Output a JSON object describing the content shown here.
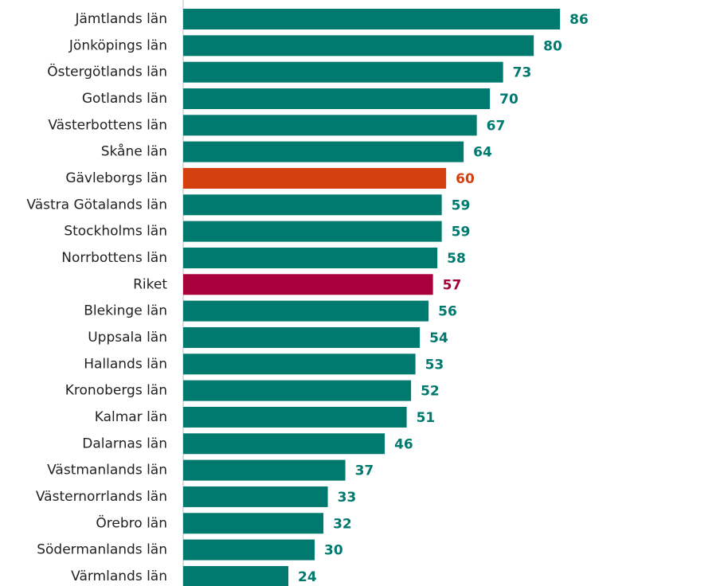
{
  "chart_data": {
    "type": "bar",
    "orientation": "horizontal",
    "categories": [
      "Jämtlands län",
      "Jönköpings län",
      "Östergötlands län",
      "Gotlands län",
      "Västerbottens län",
      "Skåne län",
      "Gävleborgs län",
      "Västra Götalands län",
      "Stockholms län",
      "Norrbottens län",
      "Riket",
      "Blekinge län",
      "Uppsala län",
      "Hallands län",
      "Kronobergs län",
      "Kalmar län",
      "Dalarnas län",
      "Västmanlands län",
      "Västernorrlands län",
      "Örebro län",
      "Södermanlands län",
      "Värmlands län"
    ],
    "values": [
      86,
      80,
      73,
      70,
      67,
      64,
      60,
      59,
      59,
      58,
      57,
      56,
      54,
      53,
      52,
      51,
      46,
      37,
      33,
      32,
      30,
      24
    ],
    "colors": [
      "#007a6e",
      "#007a6e",
      "#007a6e",
      "#007a6e",
      "#007a6e",
      "#007a6e",
      "#d4400f",
      "#007a6e",
      "#007a6e",
      "#007a6e",
      "#a8003a",
      "#007a6e",
      "#007a6e",
      "#007a6e",
      "#007a6e",
      "#007a6e",
      "#007a6e",
      "#007a6e",
      "#007a6e",
      "#007a6e",
      "#007a6e",
      "#007a6e"
    ],
    "xlim": [
      0,
      122.5
    ]
  }
}
